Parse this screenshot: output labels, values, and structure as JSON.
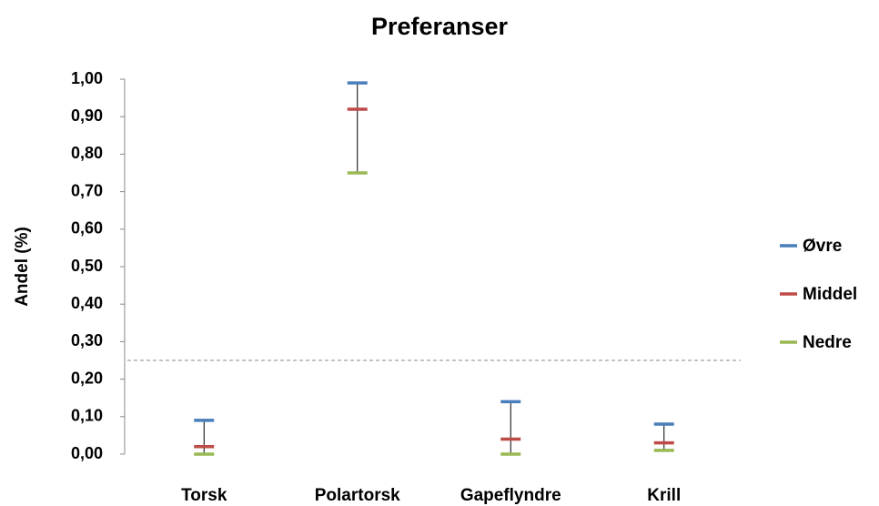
{
  "chart_data": {
    "type": "high-low-close",
    "title": "Preferanser",
    "y_axis_label": "Andel (%)",
    "categories": [
      "Torsk",
      "Polartorsk",
      "Gapeflyndre",
      "Krill"
    ],
    "series": [
      {
        "name": "Øvre",
        "color": "#4a7ebb",
        "values": [
          0.09,
          0.99,
          0.14,
          0.08
        ]
      },
      {
        "name": "Middel",
        "color": "#be4b48",
        "values": [
          0.02,
          0.92,
          0.04,
          0.03
        ]
      },
      {
        "name": "Nedre",
        "color": "#98b954",
        "values": [
          0.0,
          0.75,
          0.0,
          0.01
        ]
      }
    ],
    "ylim": [
      0,
      1
    ],
    "yticks": [
      {
        "value": 0,
        "label": "0,00"
      },
      {
        "value": 0.1,
        "label": "0,10"
      },
      {
        "value": 0.2,
        "label": "0,20"
      },
      {
        "value": 0.3,
        "label": "0,30"
      },
      {
        "value": 0.4,
        "label": "0,40"
      },
      {
        "value": 0.5,
        "label": "0,50"
      },
      {
        "value": 0.6,
        "label": "0,60"
      },
      {
        "value": 0.7,
        "label": "0,70"
      },
      {
        "value": 0.8,
        "label": "0,80"
      },
      {
        "value": 0.9,
        "label": "0,90"
      },
      {
        "value": 1,
        "label": "1,00"
      }
    ],
    "reference_line": 0.25,
    "legend": "right"
  }
}
